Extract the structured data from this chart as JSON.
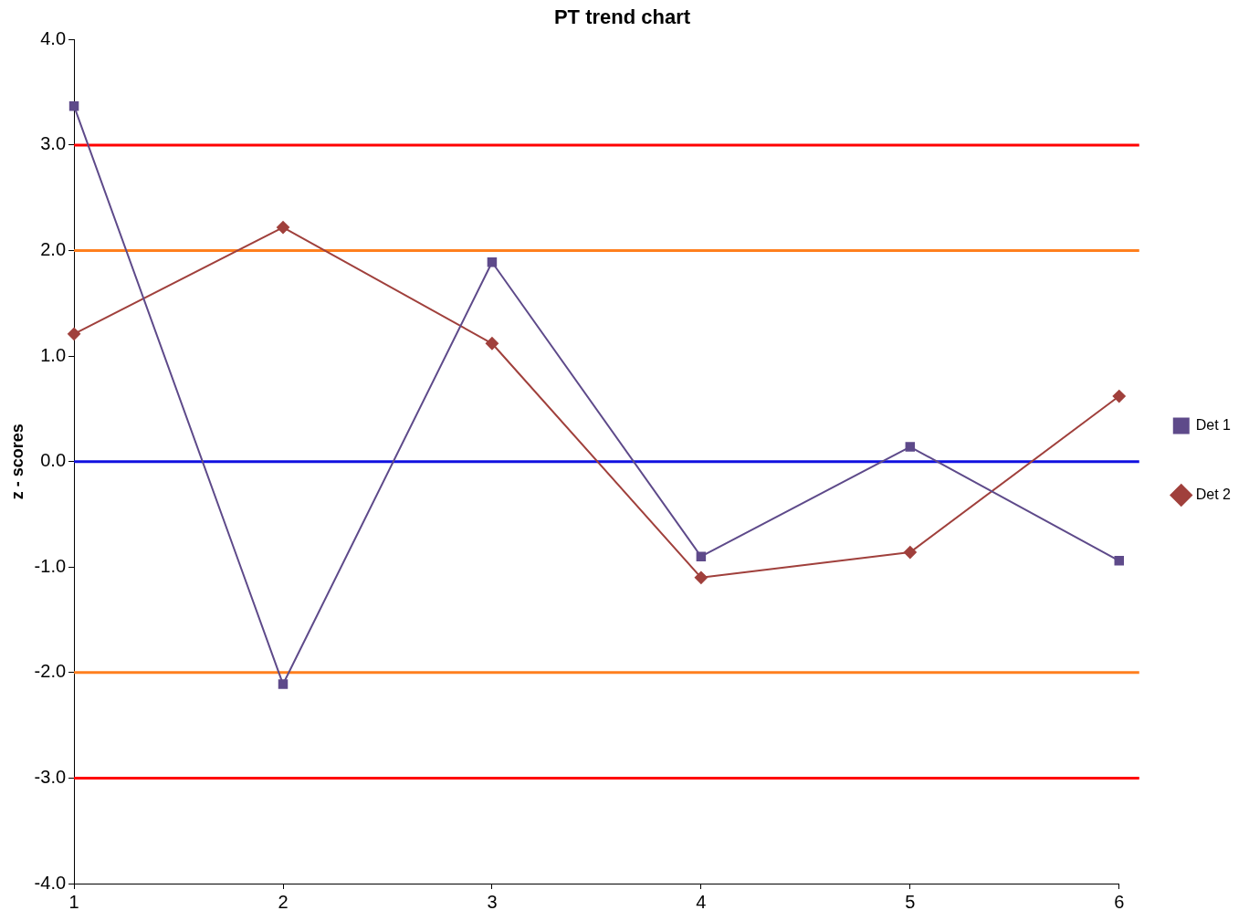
{
  "chart_data": {
    "type": "line",
    "title": "PT trend chart",
    "ylabel": "z - scores",
    "x": [
      1,
      2,
      3,
      4,
      5,
      6
    ],
    "series": [
      {
        "name": "Det 1",
        "color": "#5e4a8a",
        "marker": "square",
        "values": [
          3.37,
          -2.11,
          1.89,
          -0.9,
          0.14,
          -0.94
        ]
      },
      {
        "name": "Det 2",
        "color": "#a0403c",
        "marker": "diamond",
        "values": [
          1.21,
          2.22,
          1.12,
          -1.1,
          -0.86,
          0.62
        ]
      }
    ],
    "xlim": [
      1,
      6
    ],
    "xticks": [
      1,
      2,
      3,
      4,
      5,
      6
    ],
    "ylim": [
      -4,
      4
    ],
    "yticks": [
      {
        "value": -4,
        "label": "-4.0"
      },
      {
        "value": -3,
        "label": "-3.0"
      },
      {
        "value": -2,
        "label": "-2.0"
      },
      {
        "value": -1,
        "label": "-1.0"
      },
      {
        "value": 0,
        "label": "0.0"
      },
      {
        "value": 1,
        "label": "1.0"
      },
      {
        "value": 2,
        "label": "2.0"
      },
      {
        "value": 3,
        "label": "3.0"
      },
      {
        "value": 4,
        "label": "4.0"
      }
    ],
    "ref_lines": [
      {
        "axis": "y",
        "value": 3,
        "color": "#ff0000"
      },
      {
        "axis": "y",
        "value": 2,
        "color": "#ff7f1e"
      },
      {
        "axis": "y",
        "value": 0,
        "color": "#1010e0"
      },
      {
        "axis": "y",
        "value": -2,
        "color": "#ff7f1e"
      },
      {
        "axis": "y",
        "value": -3,
        "color": "#ff0000"
      }
    ],
    "grid": false,
    "legend": "right",
    "line_style": "solid"
  }
}
